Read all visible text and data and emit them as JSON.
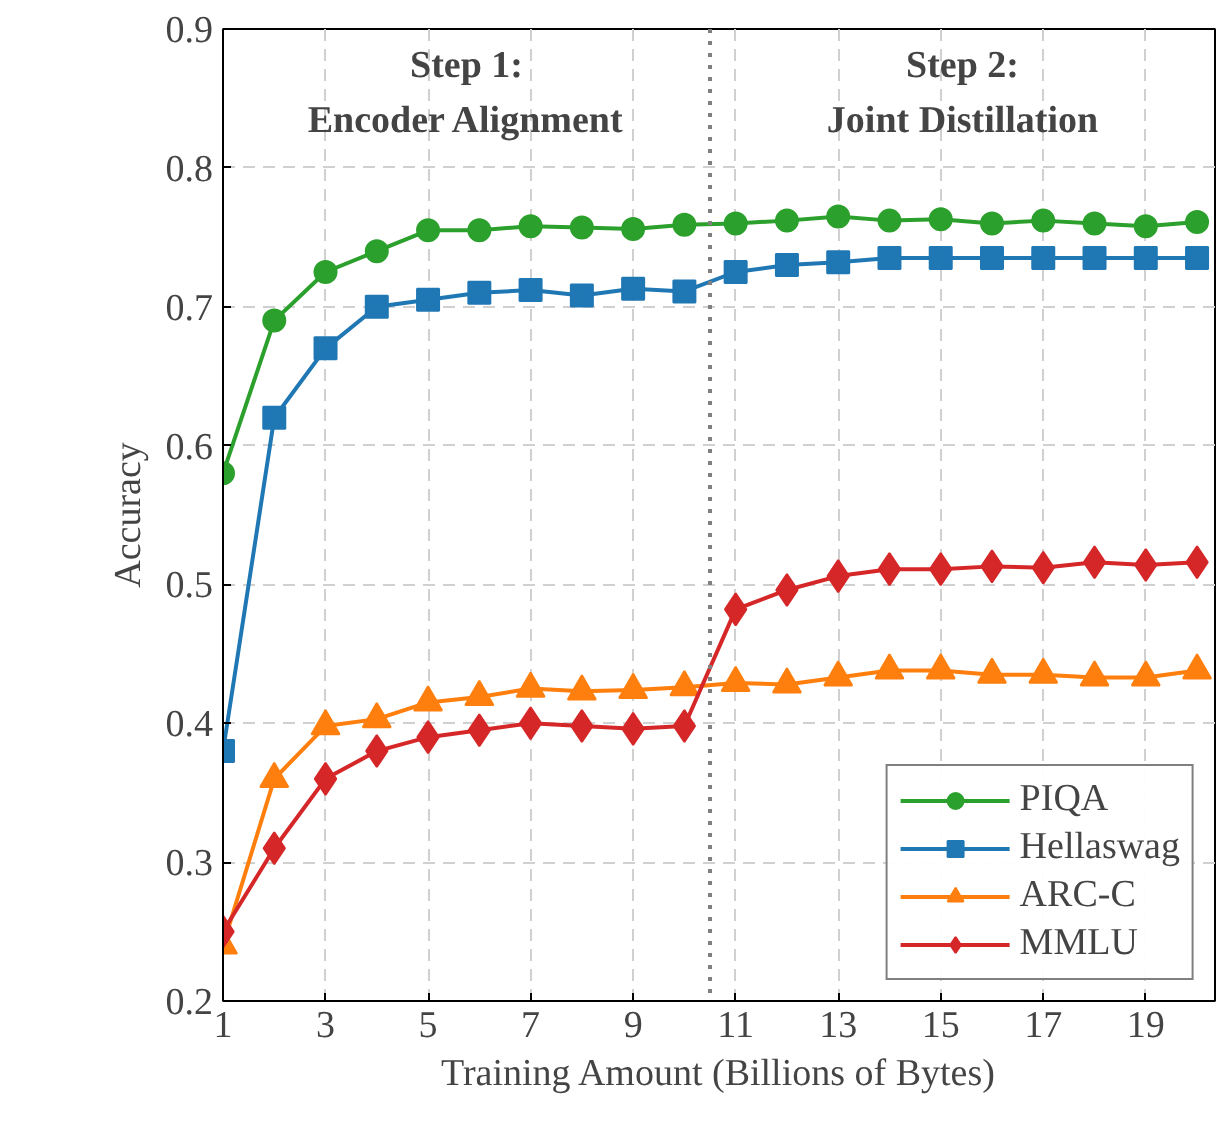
{
  "chart_data": {
    "type": "line",
    "xlabel": "Training Amount (Billions of Bytes)",
    "ylabel": "Accuracy",
    "x": [
      1,
      2,
      3,
      4,
      5,
      6,
      7,
      8,
      9,
      10,
      11,
      12,
      13,
      14,
      15,
      16,
      17,
      18,
      19,
      20
    ],
    "series": [
      {
        "name": "PIQA",
        "color": "#2ca02c",
        "marker": "circle",
        "values": [
          0.58,
          0.69,
          0.725,
          0.74,
          0.755,
          0.755,
          0.758,
          0.757,
          0.756,
          0.759,
          0.76,
          0.762,
          0.765,
          0.762,
          0.763,
          0.76,
          0.762,
          0.76,
          0.758,
          0.761
        ]
      },
      {
        "name": "Hellaswag",
        "color": "#1f77b4",
        "marker": "square",
        "values": [
          0.38,
          0.62,
          0.67,
          0.7,
          0.705,
          0.71,
          0.712,
          0.708,
          0.713,
          0.711,
          0.725,
          0.73,
          0.732,
          0.735,
          0.735,
          0.735,
          0.735,
          0.735,
          0.735,
          0.735
        ]
      },
      {
        "name": "ARC-C",
        "color": "#ff7f0e",
        "marker": "triangle",
        "values": [
          0.24,
          0.36,
          0.398,
          0.403,
          0.415,
          0.419,
          0.425,
          0.423,
          0.424,
          0.426,
          0.429,
          0.428,
          0.433,
          0.438,
          0.438,
          0.435,
          0.435,
          0.433,
          0.433,
          0.438
        ]
      },
      {
        "name": "MMLU",
        "color": "#d62728",
        "marker": "diamond",
        "values": [
          0.25,
          0.31,
          0.36,
          0.38,
          0.39,
          0.395,
          0.4,
          0.398,
          0.396,
          0.398,
          0.482,
          0.496,
          0.506,
          0.511,
          0.511,
          0.513,
          0.512,
          0.516,
          0.514,
          0.516
        ]
      }
    ],
    "xlim": [
      1,
      20.35
    ],
    "ylim": [
      0.2,
      0.9
    ],
    "xticks": [
      1,
      3,
      5,
      7,
      9,
      11,
      13,
      15,
      17,
      19
    ],
    "yticks": [
      {
        "value": 0.2,
        "label": "0.2"
      },
      {
        "value": 0.3,
        "label": "0.3"
      },
      {
        "value": 0.4,
        "label": "0.4"
      },
      {
        "value": 0.5,
        "label": "0.5"
      },
      {
        "value": 0.6,
        "label": "0.6"
      },
      {
        "value": 0.7,
        "label": "0.7"
      },
      {
        "value": 0.8,
        "label": "0.8"
      },
      {
        "value": 0.9,
        "label": "0.9"
      }
    ],
    "ref_lines": [
      {
        "axis": "x",
        "value": 10.5,
        "label": null,
        "color": "#808080",
        "line_style": "dotted"
      }
    ],
    "annotations": [
      "Step 1:\nEncoder Alignment",
      "Step 2:\nJoint Distillation"
    ],
    "grid": true,
    "legend": "bottom right",
    "line_style": "solid"
  }
}
